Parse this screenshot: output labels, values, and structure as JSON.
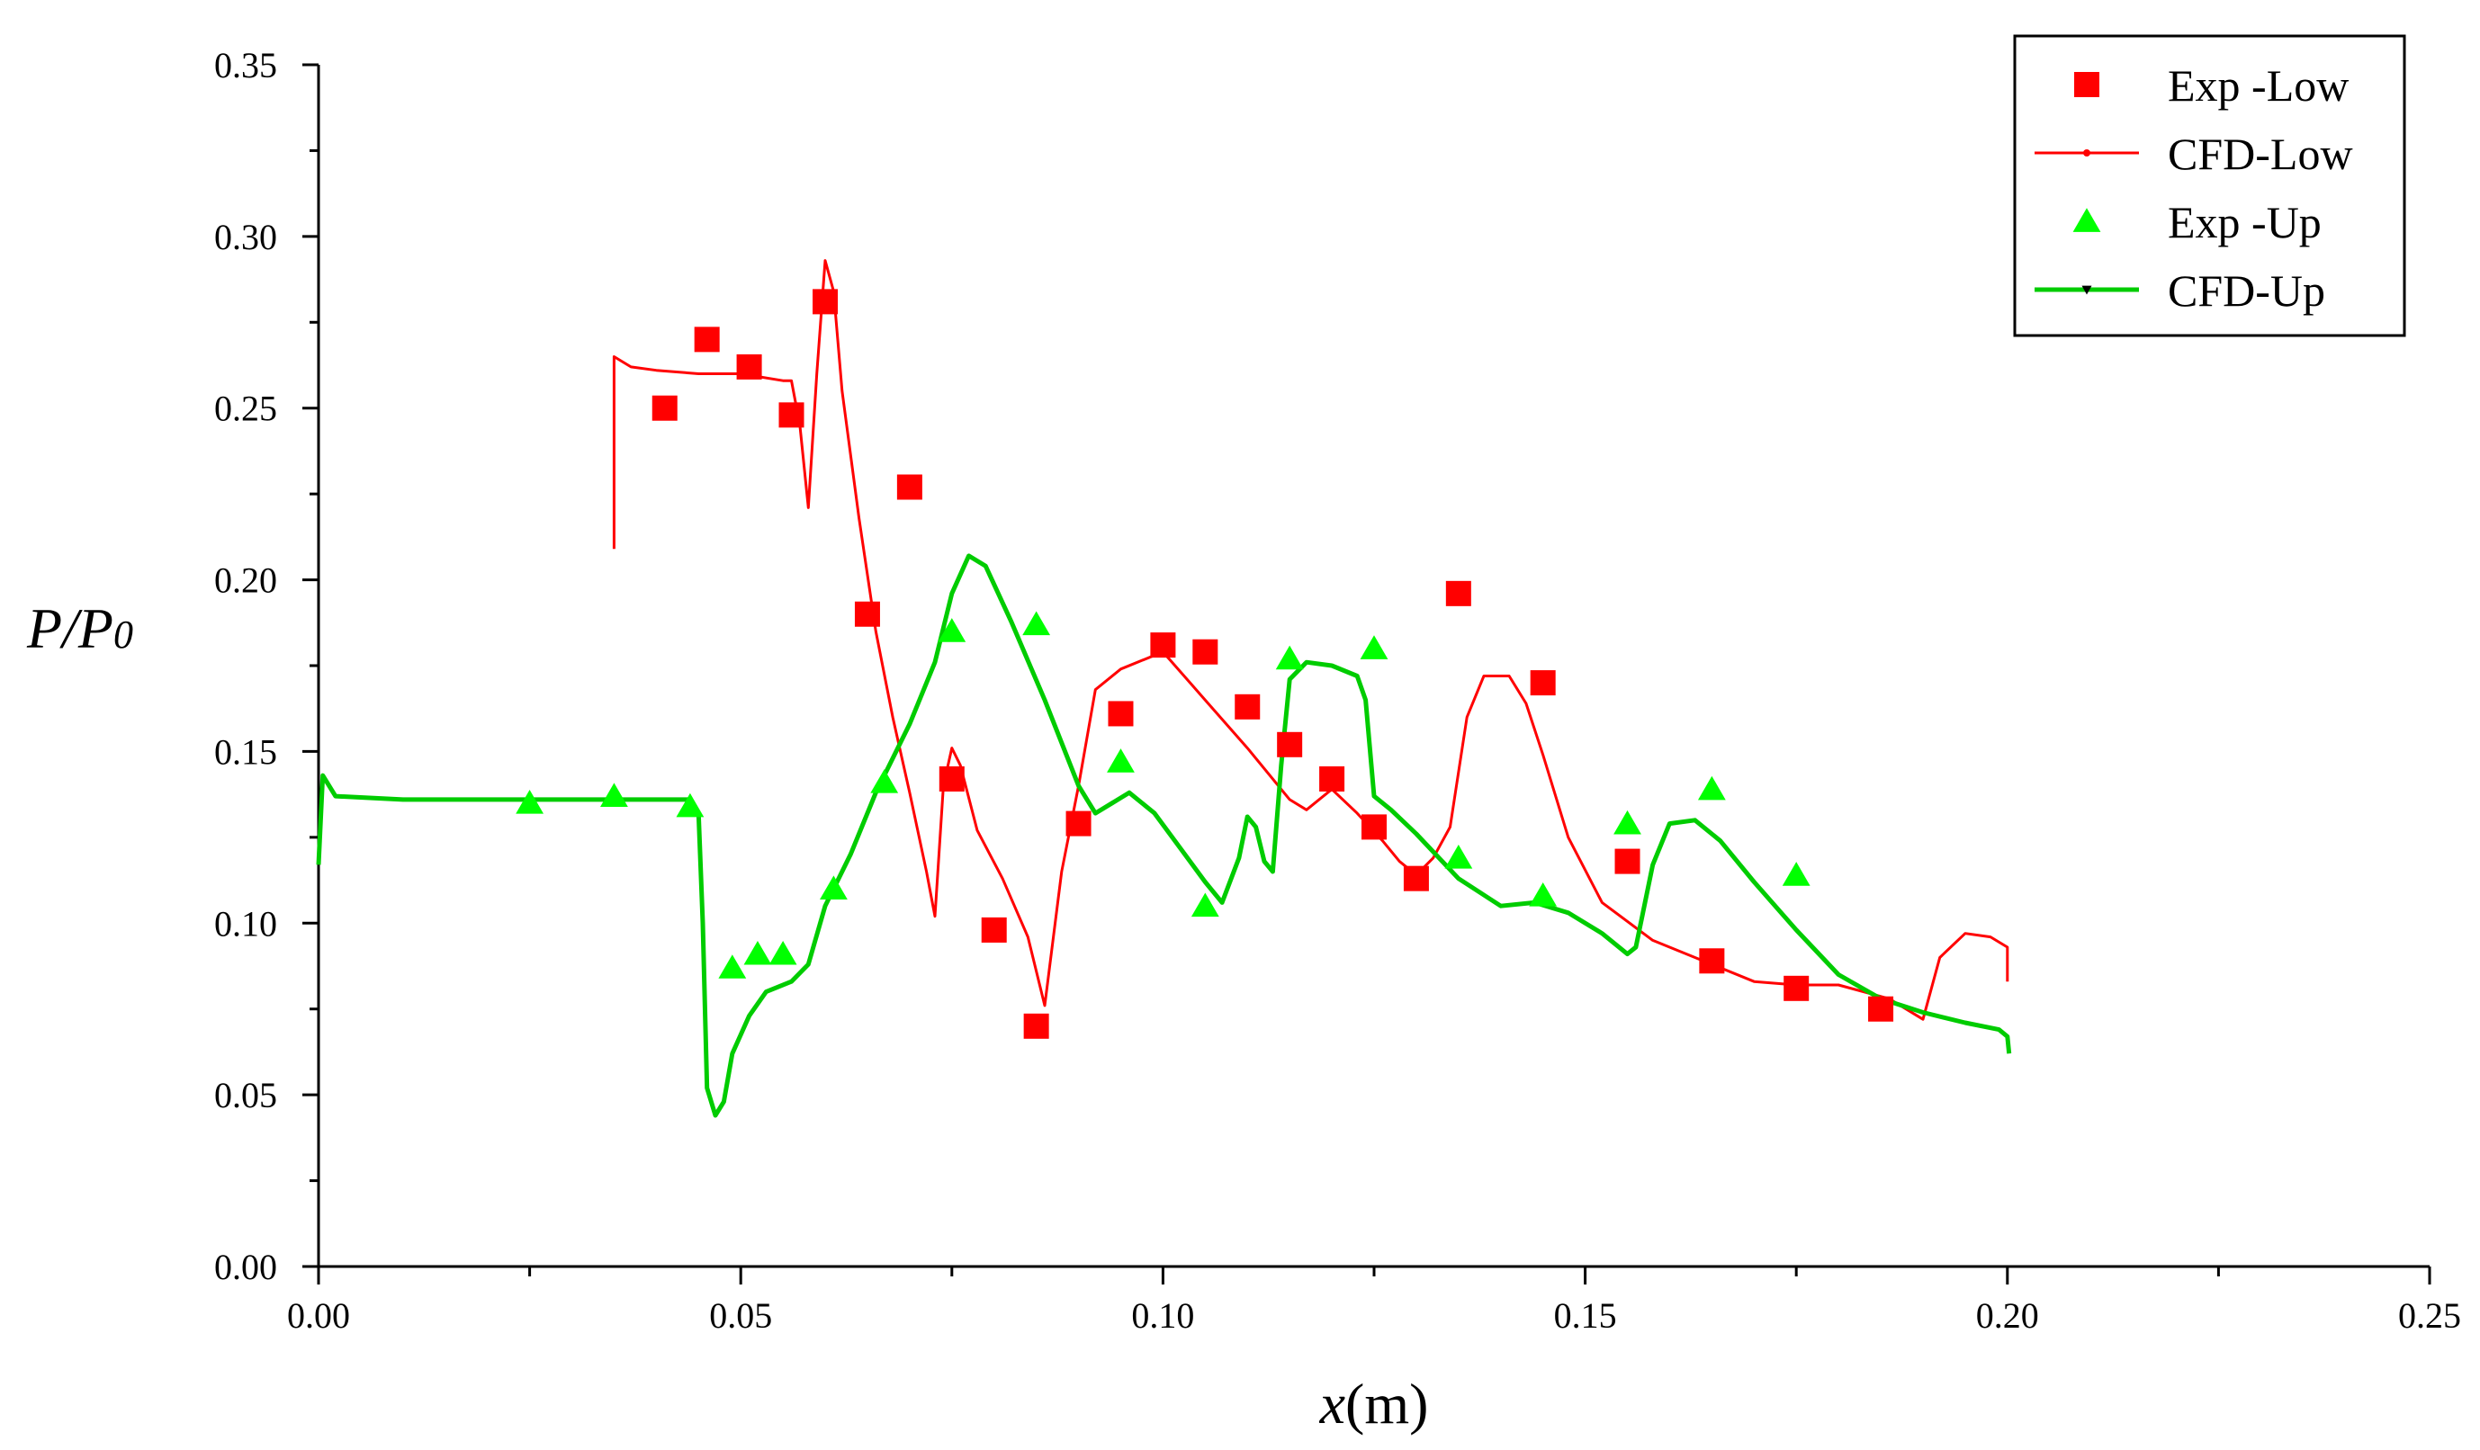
{
  "chart_data": {
    "type": "line",
    "xlabel": "x(m)",
    "xlabel_italic_part": "x",
    "xlabel_unit_part": "(m)",
    "ylabel": "P/P0",
    "ylabel_main": "P/P",
    "ylabel_sub": "0",
    "xlim": [
      0,
      0.25
    ],
    "ylim": [
      0,
      0.35
    ],
    "xticks": [
      0,
      0.05,
      0.1,
      0.15,
      0.2,
      0.25
    ],
    "xtick_labels": [
      "0.00",
      "0.05",
      "0.10",
      "0.15",
      "0.20",
      "0.25"
    ],
    "yticks": [
      0,
      0.05,
      0.1,
      0.15,
      0.2,
      0.25,
      0.3,
      0.35
    ],
    "ytick_labels": [
      "0.00",
      "0.05",
      "0.10",
      "0.15",
      "0.20",
      "0.25",
      "0.30",
      "0.35"
    ],
    "grid": false,
    "legend_position": "top-right",
    "series": [
      {
        "name": "Exp -Low",
        "kind": "scatter",
        "marker": "square",
        "color": "#ff0000",
        "points": [
          [
            0.041,
            0.25
          ],
          [
            0.046,
            0.27
          ],
          [
            0.051,
            0.262
          ],
          [
            0.056,
            0.248
          ],
          [
            0.06,
            0.281
          ],
          [
            0.065,
            0.19
          ],
          [
            0.07,
            0.227
          ],
          [
            0.075,
            0.142
          ],
          [
            0.08,
            0.098
          ],
          [
            0.085,
            0.07
          ],
          [
            0.09,
            0.129
          ],
          [
            0.095,
            0.161
          ],
          [
            0.1,
            0.181
          ],
          [
            0.105,
            0.179
          ],
          [
            0.11,
            0.163
          ],
          [
            0.115,
            0.152
          ],
          [
            0.12,
            0.142
          ],
          [
            0.125,
            0.128
          ],
          [
            0.13,
            0.113
          ],
          [
            0.135,
            0.196
          ],
          [
            0.145,
            0.17
          ],
          [
            0.155,
            0.118
          ],
          [
            0.165,
            0.089
          ],
          [
            0.175,
            0.081
          ],
          [
            0.185,
            0.075
          ]
        ]
      },
      {
        "name": "CFD-Low",
        "kind": "line",
        "marker": "dot",
        "color": "#ff0000",
        "points": [
          [
            0.035,
            0.209
          ],
          [
            0.035,
            0.265
          ],
          [
            0.037,
            0.262
          ],
          [
            0.04,
            0.261
          ],
          [
            0.045,
            0.26
          ],
          [
            0.05,
            0.26
          ],
          [
            0.055,
            0.258
          ],
          [
            0.056,
            0.258
          ],
          [
            0.057,
            0.245
          ],
          [
            0.058,
            0.221
          ],
          [
            0.059,
            0.26
          ],
          [
            0.06,
            0.293
          ],
          [
            0.061,
            0.284
          ],
          [
            0.062,
            0.255
          ],
          [
            0.064,
            0.218
          ],
          [
            0.066,
            0.185
          ],
          [
            0.068,
            0.16
          ],
          [
            0.07,
            0.138
          ],
          [
            0.072,
            0.115
          ],
          [
            0.073,
            0.102
          ],
          [
            0.074,
            0.14
          ],
          [
            0.075,
            0.151
          ],
          [
            0.076,
            0.146
          ],
          [
            0.078,
            0.127
          ],
          [
            0.081,
            0.113
          ],
          [
            0.084,
            0.096
          ],
          [
            0.086,
            0.076
          ],
          [
            0.088,
            0.115
          ],
          [
            0.09,
            0.14
          ],
          [
            0.092,
            0.168
          ],
          [
            0.095,
            0.174
          ],
          [
            0.1,
            0.179
          ],
          [
            0.105,
            0.165
          ],
          [
            0.11,
            0.151
          ],
          [
            0.115,
            0.136
          ],
          [
            0.117,
            0.133
          ],
          [
            0.12,
            0.139
          ],
          [
            0.123,
            0.132
          ],
          [
            0.126,
            0.124
          ],
          [
            0.128,
            0.118
          ],
          [
            0.13,
            0.114
          ],
          [
            0.132,
            0.119
          ],
          [
            0.134,
            0.128
          ],
          [
            0.136,
            0.16
          ],
          [
            0.138,
            0.172
          ],
          [
            0.141,
            0.172
          ],
          [
            0.143,
            0.164
          ],
          [
            0.145,
            0.149
          ],
          [
            0.148,
            0.125
          ],
          [
            0.152,
            0.106
          ],
          [
            0.158,
            0.095
          ],
          [
            0.165,
            0.088
          ],
          [
            0.17,
            0.083
          ],
          [
            0.175,
            0.082
          ],
          [
            0.18,
            0.082
          ],
          [
            0.186,
            0.078
          ],
          [
            0.19,
            0.072
          ],
          [
            0.192,
            0.09
          ],
          [
            0.195,
            0.097
          ],
          [
            0.198,
            0.096
          ],
          [
            0.2,
            0.093
          ],
          [
            0.2,
            0.083
          ]
        ]
      },
      {
        "name": "Exp -Up",
        "kind": "scatter",
        "marker": "triangle-up",
        "color": "#00ff00",
        "points": [
          [
            0.025,
            0.135
          ],
          [
            0.035,
            0.137
          ],
          [
            0.044,
            0.134
          ],
          [
            0.049,
            0.087
          ],
          [
            0.052,
            0.091
          ],
          [
            0.055,
            0.091
          ],
          [
            0.061,
            0.11
          ],
          [
            0.067,
            0.141
          ],
          [
            0.075,
            0.185
          ],
          [
            0.085,
            0.187
          ],
          [
            0.095,
            0.147
          ],
          [
            0.105,
            0.105
          ],
          [
            0.115,
            0.177
          ],
          [
            0.125,
            0.18
          ],
          [
            0.135,
            0.119
          ],
          [
            0.145,
            0.108
          ],
          [
            0.155,
            0.129
          ],
          [
            0.165,
            0.139
          ],
          [
            0.175,
            0.114
          ]
        ]
      },
      {
        "name": "CFD-Up",
        "kind": "line",
        "marker": "triangle-down",
        "color": "#00cc00",
        "points": [
          [
            0.0,
            0.117
          ],
          [
            0.0005,
            0.143
          ],
          [
            0.002,
            0.137
          ],
          [
            0.01,
            0.136
          ],
          [
            0.02,
            0.136
          ],
          [
            0.03,
            0.136
          ],
          [
            0.04,
            0.136
          ],
          [
            0.044,
            0.136
          ],
          [
            0.045,
            0.132
          ],
          [
            0.0455,
            0.1
          ],
          [
            0.046,
            0.052
          ],
          [
            0.047,
            0.044
          ],
          [
            0.048,
            0.048
          ],
          [
            0.049,
            0.062
          ],
          [
            0.051,
            0.073
          ],
          [
            0.053,
            0.08
          ],
          [
            0.056,
            0.083
          ],
          [
            0.058,
            0.088
          ],
          [
            0.06,
            0.105
          ],
          [
            0.063,
            0.12
          ],
          [
            0.066,
            0.138
          ],
          [
            0.07,
            0.158
          ],
          [
            0.073,
            0.176
          ],
          [
            0.075,
            0.196
          ],
          [
            0.077,
            0.207
          ],
          [
            0.079,
            0.204
          ],
          [
            0.082,
            0.188
          ],
          [
            0.086,
            0.165
          ],
          [
            0.09,
            0.14
          ],
          [
            0.092,
            0.132
          ],
          [
            0.094,
            0.135
          ],
          [
            0.096,
            0.138
          ],
          [
            0.099,
            0.132
          ],
          [
            0.102,
            0.122
          ],
          [
            0.105,
            0.112
          ],
          [
            0.107,
            0.106
          ],
          [
            0.109,
            0.119
          ],
          [
            0.11,
            0.131
          ],
          [
            0.111,
            0.128
          ],
          [
            0.112,
            0.118
          ],
          [
            0.113,
            0.115
          ],
          [
            0.114,
            0.146
          ],
          [
            0.115,
            0.171
          ],
          [
            0.117,
            0.176
          ],
          [
            0.12,
            0.175
          ],
          [
            0.123,
            0.172
          ],
          [
            0.124,
            0.165
          ],
          [
            0.125,
            0.137
          ],
          [
            0.127,
            0.133
          ],
          [
            0.13,
            0.126
          ],
          [
            0.135,
            0.113
          ],
          [
            0.14,
            0.105
          ],
          [
            0.144,
            0.106
          ],
          [
            0.148,
            0.103
          ],
          [
            0.152,
            0.097
          ],
          [
            0.155,
            0.091
          ],
          [
            0.156,
            0.093
          ],
          [
            0.158,
            0.117
          ],
          [
            0.16,
            0.129
          ],
          [
            0.163,
            0.13
          ],
          [
            0.166,
            0.124
          ],
          [
            0.17,
            0.112
          ],
          [
            0.175,
            0.098
          ],
          [
            0.18,
            0.085
          ],
          [
            0.185,
            0.078
          ],
          [
            0.19,
            0.074
          ],
          [
            0.195,
            0.071
          ],
          [
            0.199,
            0.069
          ],
          [
            0.2,
            0.067
          ],
          [
            0.2002,
            0.062
          ]
        ]
      }
    ]
  }
}
